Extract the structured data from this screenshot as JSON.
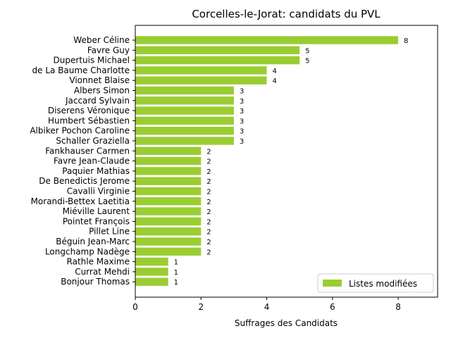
{
  "chart_data": {
    "type": "bar",
    "orientation": "horizontal",
    "title": "Corcelles-le-Jorat: candidats du PVL",
    "xlabel": "Suffrages des Candidats",
    "ylabel": "",
    "xlim": [
      0,
      9.2
    ],
    "xticks": [
      0,
      2,
      4,
      6,
      8
    ],
    "grid": false,
    "legend_position": "bottom-right",
    "bar_color": "#9acd32",
    "categories": [
      "Weber Céline",
      "Favre Guy",
      "Dupertuis Michael",
      "de La Baume Charlotte",
      "Vionnet Blaise",
      "Albers Simon",
      "Jaccard Sylvain",
      "Diserens Véronique",
      "Humbert Sébastien",
      "Albiker Pochon Caroline",
      "Schaller Graziella",
      "Fankhauser Carmen",
      "Favre Jean-Claude",
      "Paquier Mathias",
      "De Benedictis Jerome",
      "Cavalli Virginie",
      "Morandi-Bettex Laetitia",
      "Miéville Laurent",
      "Pointet François",
      "Pillet Line",
      "Béguin Jean-Marc",
      "Longchamp Nadège",
      "Rathle Maxime",
      "Currat Mehdi",
      "Bonjour Thomas"
    ],
    "series": [
      {
        "name": "Listes modifiées",
        "values": [
          8,
          5,
          5,
          4,
          4,
          3,
          3,
          3,
          3,
          3,
          3,
          2,
          2,
          2,
          2,
          2,
          2,
          2,
          2,
          2,
          2,
          2,
          1,
          1,
          1
        ]
      }
    ]
  }
}
